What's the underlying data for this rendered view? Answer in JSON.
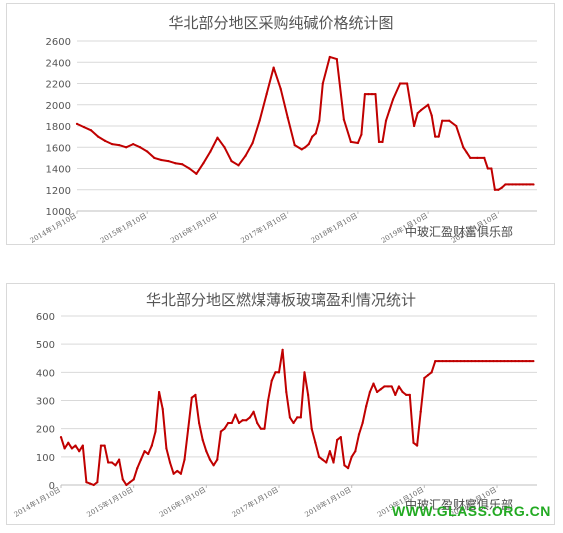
{
  "watermark_text": "中玻汇盈财富俱乐部",
  "site_text": "WWW.GLASS.ORG.CN",
  "colors": {
    "line": "#c00000",
    "grid": "#d9d9d9",
    "text": "#555555",
    "site": "#22aa22"
  },
  "chart_data": [
    {
      "type": "line",
      "title": "华北部分地区采购纯碱价格统计图",
      "ylim": [
        1000,
        2600
      ],
      "yticks": [
        "1000",
        "1200",
        "1400",
        "1600",
        "1800",
        "2000",
        "2200",
        "2400",
        "2600"
      ],
      "xtick_labels": [
        "2014年1月10日",
        "2015年1月10日",
        "2016年1月10日",
        "2017年1月10日",
        "2018年1月10日",
        "2019年1月10日",
        "2020年1月10日"
      ],
      "xlim": [
        2014.0,
        2020.55
      ],
      "grid": true,
      "series": [
        {
          "x": [
            2014.0,
            2014.1,
            2014.2,
            2014.3,
            2014.4,
            2014.5,
            2014.6,
            2014.7,
            2014.8,
            2014.9,
            2015.0,
            2015.1,
            2015.2,
            2015.3,
            2015.4,
            2015.5,
            2015.6,
            2015.7,
            2015.8,
            2015.9,
            2016.0,
            2016.1,
            2016.2,
            2016.3,
            2016.4,
            2016.5,
            2016.6,
            2016.7,
            2016.8,
            2016.9,
            2017.0,
            2017.1,
            2017.2,
            2017.25,
            2017.3,
            2017.35,
            2017.4,
            2017.45,
            2017.5,
            2017.6,
            2017.7,
            2017.8,
            2017.9,
            2018.0,
            2018.05,
            2018.1,
            2018.15,
            2018.2,
            2018.25,
            2018.3,
            2018.35,
            2018.4,
            2018.45,
            2018.5,
            2018.6,
            2018.7,
            2018.75,
            2018.8,
            2018.85,
            2018.9,
            2019.0,
            2019.05,
            2019.1,
            2019.15,
            2019.2,
            2019.3,
            2019.4,
            2019.5,
            2019.55,
            2019.6,
            2019.7,
            2019.8,
            2019.85,
            2019.9,
            2019.95,
            2020.0,
            2020.05,
            2020.1,
            2020.15,
            2020.2,
            2020.25,
            2020.3,
            2020.35,
            2020.4,
            2020.45,
            2020.5
          ],
          "y": [
            1820,
            1790,
            1760,
            1700,
            1660,
            1630,
            1620,
            1600,
            1630,
            1600,
            1560,
            1500,
            1480,
            1470,
            1450,
            1440,
            1400,
            1350,
            1450,
            1560,
            1690,
            1600,
            1470,
            1430,
            1520,
            1640,
            1850,
            2100,
            2350,
            2150,
            1880,
            1620,
            1580,
            1600,
            1630,
            1700,
            1730,
            1850,
            2200,
            2450,
            2430,
            1860,
            1650,
            1640,
            1720,
            2100,
            2100,
            2100,
            2100,
            1650,
            1650,
            1850,
            1950,
            2050,
            2200,
            2200,
            2000,
            1800,
            1920,
            1950,
            2000,
            1900,
            1700,
            1700,
            1850,
            1850,
            1800,
            1600,
            1550,
            1500,
            1500,
            1500,
            1400,
            1400,
            1200,
            1200,
            1220,
            1250,
            1250,
            1250,
            1250,
            1250,
            1250,
            1250,
            1250,
            1250
          ]
        }
      ]
    },
    {
      "type": "line",
      "title": "华北部分地区燃煤薄板玻璃盈利情况统计",
      "ylim": [
        0,
        600
      ],
      "yticks": [
        "0",
        "100",
        "200",
        "300",
        "400",
        "500",
        "600"
      ],
      "xtick_labels": [
        "2014年1月10日",
        "2015年1月10日",
        "2016年1月10日",
        "2017年1月10日",
        "2018年1月10日",
        "2019年1月10日",
        "2020年1月10日"
      ],
      "xlim": [
        2014.0,
        2020.55
      ],
      "grid": true,
      "series": [
        {
          "x": [
            2014.0,
            2014.05,
            2014.1,
            2014.15,
            2014.2,
            2014.25,
            2014.3,
            2014.35,
            2014.4,
            2014.45,
            2014.5,
            2014.55,
            2014.6,
            2014.65,
            2014.7,
            2014.75,
            2014.8,
            2014.85,
            2014.9,
            2014.95,
            2015.0,
            2015.05,
            2015.1,
            2015.15,
            2015.2,
            2015.25,
            2015.3,
            2015.35,
            2015.4,
            2015.45,
            2015.5,
            2015.55,
            2015.6,
            2015.65,
            2015.7,
            2015.75,
            2015.8,
            2015.85,
            2015.9,
            2015.95,
            2016.0,
            2016.05,
            2016.1,
            2016.15,
            2016.2,
            2016.25,
            2016.3,
            2016.35,
            2016.4,
            2016.45,
            2016.5,
            2016.55,
            2016.6,
            2016.65,
            2016.7,
            2016.75,
            2016.8,
            2016.85,
            2016.9,
            2016.95,
            2017.0,
            2017.05,
            2017.1,
            2017.15,
            2017.2,
            2017.25,
            2017.3,
            2017.35,
            2017.4,
            2017.45,
            2017.5,
            2017.55,
            2017.6,
            2017.65,
            2017.7,
            2017.75,
            2017.8,
            2017.85,
            2017.9,
            2017.95,
            2018.0,
            2018.05,
            2018.1,
            2018.15,
            2018.2,
            2018.25,
            2018.3,
            2018.35,
            2018.4,
            2018.45,
            2018.5,
            2018.55,
            2018.6,
            2018.65,
            2018.7,
            2018.75,
            2018.8,
            2018.85,
            2018.9,
            2018.95,
            2019.0,
            2019.05,
            2019.1,
            2019.15,
            2019.2,
            2019.25,
            2019.3,
            2019.35,
            2019.4,
            2019.45,
            2019.5,
            2019.55,
            2019.6,
            2019.65,
            2019.7,
            2019.75,
            2019.8,
            2019.85,
            2019.9,
            2019.95,
            2020.0,
            2020.05,
            2020.1,
            2020.15,
            2020.2,
            2020.25,
            2020.3,
            2020.35,
            2020.4,
            2020.45,
            2020.5
          ],
          "y": [
            170,
            130,
            150,
            130,
            140,
            120,
            140,
            10,
            5,
            0,
            10,
            140,
            140,
            80,
            80,
            70,
            90,
            20,
            0,
            10,
            20,
            60,
            90,
            120,
            110,
            140,
            190,
            330,
            270,
            130,
            80,
            40,
            50,
            40,
            90,
            200,
            310,
            320,
            220,
            160,
            120,
            90,
            70,
            90,
            190,
            200,
            220,
            220,
            250,
            220,
            230,
            230,
            240,
            260,
            220,
            200,
            200,
            300,
            370,
            400,
            400,
            480,
            330,
            240,
            220,
            240,
            240,
            400,
            320,
            200,
            150,
            100,
            90,
            80,
            120,
            80,
            160,
            170,
            70,
            60,
            100,
            120,
            180,
            220,
            280,
            330,
            360,
            330,
            340,
            350,
            350,
            350,
            320,
            350,
            330,
            320,
            320,
            150,
            140,
            260,
            380,
            390,
            400,
            440,
            440,
            440,
            440,
            440,
            440,
            440,
            440,
            440,
            440,
            440,
            440,
            440,
            440,
            440,
            440,
            440,
            440,
            440,
            440,
            440,
            440,
            440,
            440,
            440,
            440,
            440,
            440
          ]
        }
      ]
    }
  ]
}
